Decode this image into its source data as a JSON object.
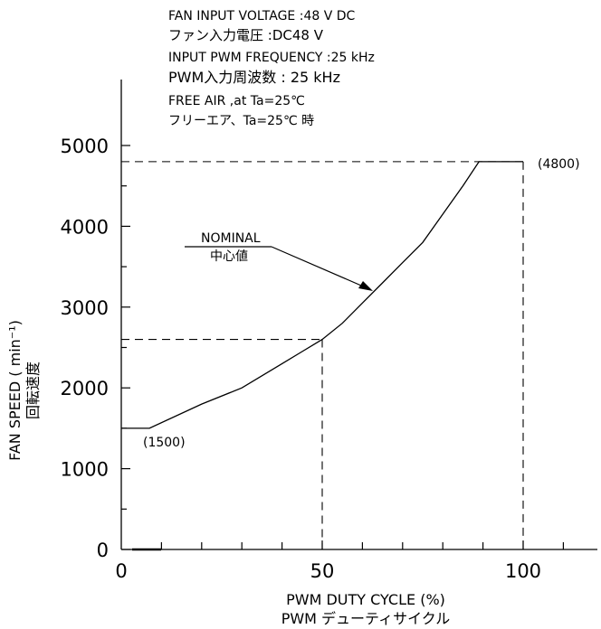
{
  "conditions": [
    "FAN INPUT VOLTAGE  :48 V DC",
    "ファン入力電圧          :DC48  V",
    "INPUT PWM FREQUENCY :25 kHz",
    "PWM入力周波数   :  25  kHz",
    "FREE AIR ,at Ta=25℃",
    "フリーエア、Ta=25℃ 時"
  ],
  "chart_data": {
    "type": "line",
    "xlabel": "PWM  DUTY  CYCLE  (%)",
    "xlabel_sub": "PWM  デューティサイクル",
    "ylabel": "FAN  SPEED  ( min⁻¹)",
    "ylabel_sub": "回転速度",
    "xlim": [
      0,
      120
    ],
    "ylim": [
      0,
      5000
    ],
    "x_ticks": [
      0,
      50,
      100
    ],
    "y_ticks": [
      0,
      1000,
      2000,
      3000,
      4000,
      5000
    ],
    "series": [
      {
        "name": "NOMINAL",
        "name_sub": "中心値",
        "x": [
          0,
          7,
          20,
          30,
          40,
          45,
          50,
          55,
          60,
          65,
          70,
          75,
          80,
          85,
          89,
          100
        ],
        "y": [
          1500,
          1500,
          1800,
          2000,
          2300,
          2450,
          2600,
          2800,
          3050,
          3300,
          3550,
          3800,
          4150,
          4500,
          4800,
          4800
        ]
      }
    ],
    "annotations": {
      "min_label": "(1500)",
      "max_label": "(4800)"
    },
    "reference_lines": [
      {
        "x": 50,
        "y": 2600
      },
      {
        "x": 100,
        "y": 4800
      }
    ]
  }
}
